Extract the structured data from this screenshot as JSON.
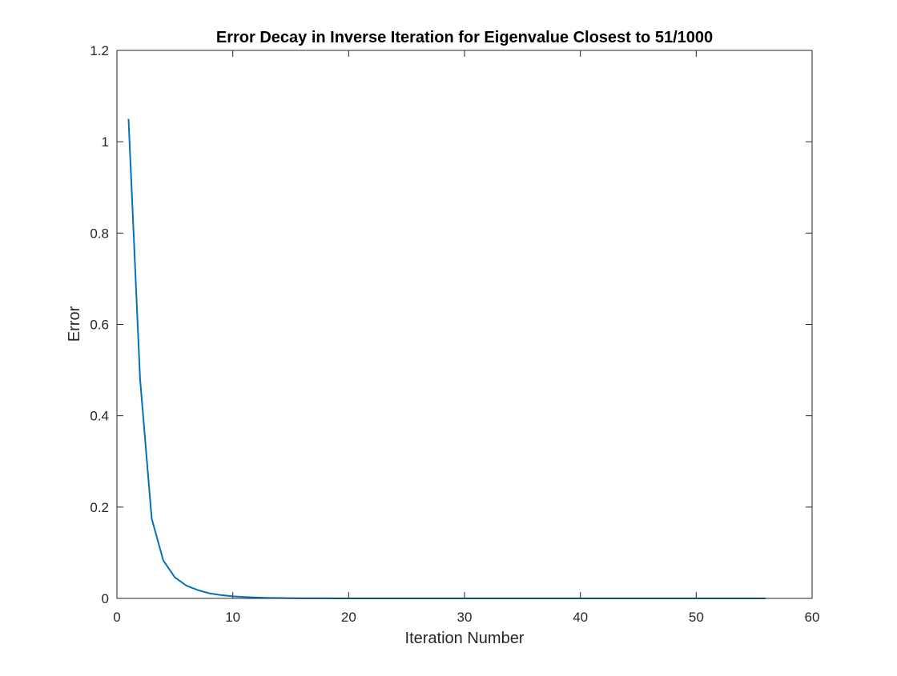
{
  "chart_data": {
    "type": "line",
    "title": "Error Decay in Inverse Iteration for Eigenvalue Closest to 51/1000",
    "xlabel": "Iteration Number",
    "ylabel": "Error",
    "xlim": [
      0,
      60
    ],
    "ylim": [
      0,
      1.2
    ],
    "xticks": [
      0,
      10,
      20,
      30,
      40,
      50,
      60
    ],
    "yticks": [
      0,
      0.2,
      0.4,
      0.6,
      0.8,
      1,
      1.2
    ],
    "xtick_labels": [
      "0",
      "10",
      "20",
      "30",
      "40",
      "50",
      "60"
    ],
    "ytick_labels": [
      "0",
      "0.2",
      "0.4",
      "0.6",
      "0.8",
      "1",
      "1.2"
    ],
    "grid": false,
    "box": true,
    "series": [
      {
        "color": "#0072BD",
        "x": [
          1,
          2,
          3,
          4,
          5,
          6,
          7,
          8,
          9,
          10,
          11,
          12,
          13,
          14,
          15,
          16,
          17,
          18,
          19,
          20,
          21,
          22,
          23,
          24,
          25,
          26,
          27,
          28,
          29,
          30,
          31,
          32,
          33,
          34,
          35,
          36,
          37,
          38,
          39,
          40,
          41,
          42,
          43,
          44,
          45,
          46,
          47,
          48,
          49,
          50,
          51,
          52,
          53,
          54,
          55,
          56
        ],
        "y": [
          1.05,
          0.48,
          0.175,
          0.083,
          0.046,
          0.028,
          0.018,
          0.011,
          0.0072,
          0.0046,
          0.003,
          0.0019,
          0.0012,
          0.0008,
          0.0005,
          0.0003,
          0.0002,
          0.00013,
          8e-05,
          5e-05,
          3e-05,
          2e-05,
          1e-05,
          0,
          0,
          0,
          0,
          0,
          0,
          0,
          0,
          0,
          0,
          0,
          0,
          0,
          0,
          0,
          0,
          0,
          0,
          0,
          0,
          0,
          0,
          0,
          0,
          0,
          0,
          0,
          0,
          0,
          0,
          0,
          0,
          0
        ]
      }
    ]
  }
}
